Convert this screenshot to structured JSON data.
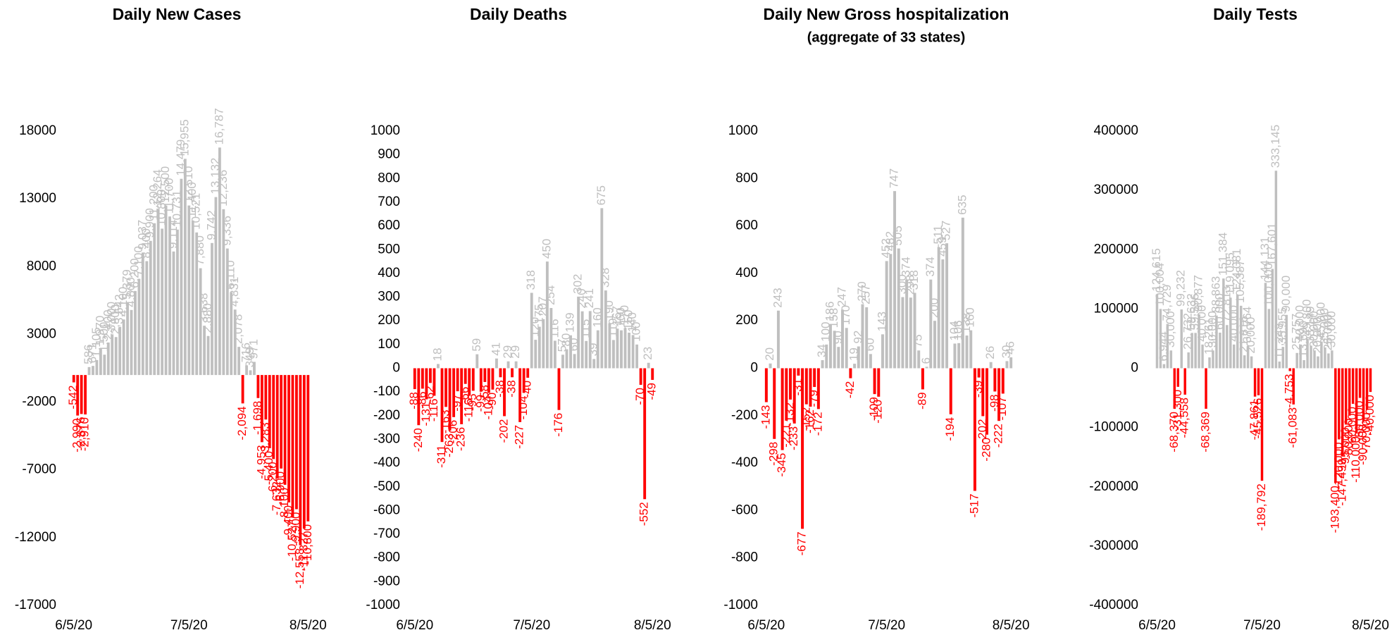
{
  "chart_data": [
    {
      "type": "bar",
      "title": "Daily New Cases",
      "color": "#bfbfbf",
      "negative_color": "#ff0000",
      "categories": [
        "6/5/20",
        null,
        null,
        null,
        null,
        null,
        null,
        null,
        null,
        null,
        null,
        null,
        null,
        null,
        null,
        null,
        null,
        null,
        null,
        null,
        null,
        null,
        null,
        null,
        null,
        null,
        null,
        null,
        null,
        null,
        "7/5/20",
        null,
        null,
        null,
        null,
        null,
        null,
        null,
        null,
        null,
        null,
        null,
        null,
        null,
        null,
        null,
        null,
        null,
        null,
        null,
        null,
        null,
        null,
        null,
        null,
        null,
        null,
        null,
        null,
        null,
        null,
        "8/5/20"
      ],
      "values": [
        -542,
        -2990,
        -2876,
        -2910,
        586,
        671,
        1105,
        1970,
        1500,
        2400,
        3000,
        2800,
        3542,
        4100,
        5379,
        4800,
        6200,
        7100,
        9037,
        8400,
        9900,
        11200,
        12264,
        10800,
        12500,
        11700,
        9114,
        10731,
        14479,
        15955,
        12510,
        11400,
        10521,
        7880,
        3638,
        2880,
        9742,
        13132,
        16787,
        12236,
        9336,
        6110,
        4831,
        2078,
        -2094,
        716,
        349,
        971,
        -1698,
        -4953,
        -3283,
        -5400,
        -6200,
        -7632,
        -6900,
        -8100,
        -9400,
        -10527,
        -9900,
        -12558,
        -11327,
        -10800
      ],
      "value_labels": [
        "-542",
        "-2,990",
        "-2,876",
        "-2,910",
        "586",
        "671",
        "1,105",
        "1,970",
        "1,500",
        "2,400",
        "3,000",
        "2,800",
        "3,542",
        "4,100",
        "5,379",
        "4,800",
        "6,200",
        "7,100",
        "9,037",
        "8,400",
        "9,900",
        "11,200",
        "12,264",
        "10,800",
        "12,500",
        "11,700",
        "9,114",
        "10,731",
        "14,479",
        "15,955",
        "12,510",
        "11,400",
        "10,521",
        "7,880",
        "3,638",
        "2,880",
        "9,742",
        "13,132",
        "16,787",
        "12,236",
        "9,336",
        "6,110",
        "4,831",
        "2,078",
        "-2,094",
        "716",
        "349",
        "971",
        "-1,698",
        "-4,953",
        "-3,283",
        "-5,400",
        "-6,200",
        "-7,632",
        "-6,900",
        "-8,100",
        "-9,400",
        "-10,527",
        "-9,900",
        "-12,558",
        "-11,327",
        "-10,800"
      ],
      "ylim": [
        -17000,
        18000
      ],
      "yticks": [
        -17000,
        -12000,
        -7000,
        -2000,
        3000,
        8000,
        13000,
        18000
      ]
    },
    {
      "type": "bar",
      "title": "Daily Deaths",
      "color": "#bfbfbf",
      "negative_color": "#ff0000",
      "categories": [
        "6/5/20",
        null,
        null,
        null,
        null,
        null,
        null,
        null,
        null,
        null,
        null,
        null,
        null,
        null,
        null,
        null,
        null,
        null,
        null,
        null,
        null,
        null,
        null,
        null,
        null,
        null,
        null,
        null,
        null,
        null,
        "7/5/20",
        null,
        null,
        null,
        null,
        null,
        null,
        null,
        null,
        null,
        null,
        null,
        null,
        null,
        null,
        null,
        null,
        null,
        null,
        null,
        null,
        null,
        null,
        null,
        null,
        null,
        null,
        null,
        null,
        null,
        null,
        "8/5/20"
      ],
      "values": [
        -88,
        -240,
        -86,
        -131,
        -62,
        -116,
        18,
        -311,
        -163,
        -263,
        -206,
        -97,
        -236,
        -66,
        -116,
        -95,
        59,
        -99,
        -58,
        -104,
        -90,
        41,
        -38,
        -202,
        29,
        -38,
        29,
        -227,
        -104,
        -40,
        318,
        120,
        175,
        207,
        450,
        254,
        116,
        -176,
        57,
        80,
        139,
        60,
        302,
        240,
        115,
        241,
        39,
        160,
        675,
        328,
        190,
        119,
        167,
        160,
        170,
        150,
        140,
        100,
        -70,
        -552,
        23,
        -49
      ],
      "ylim": [
        -1000,
        1000
      ],
      "yticks": [
        -1000,
        -900,
        -800,
        -700,
        -600,
        -500,
        -400,
        -300,
        -200,
        -100,
        0,
        100,
        200,
        300,
        400,
        500,
        600,
        700,
        800,
        900,
        1000
      ]
    },
    {
      "type": "bar",
      "title": "Daily New Gross hospitalization",
      "subtitle": "(aggregate of 33 states)",
      "color": "#bfbfbf",
      "negative_color": "#ff0000",
      "categories": [
        "6/5/20",
        null,
        null,
        null,
        null,
        null,
        null,
        null,
        null,
        null,
        null,
        null,
        null,
        null,
        null,
        null,
        null,
        null,
        null,
        null,
        null,
        null,
        null,
        null,
        null,
        null,
        null,
        null,
        null,
        null,
        "7/5/20",
        null,
        null,
        null,
        null,
        null,
        null,
        null,
        null,
        null,
        null,
        null,
        null,
        null,
        null,
        null,
        null,
        null,
        null,
        null,
        null,
        null,
        null,
        null,
        null,
        null,
        null,
        null,
        null,
        null,
        null,
        "8/5/20"
      ],
      "values": [
        -143,
        20,
        -298,
        243,
        -345,
        -221,
        -132,
        -233,
        -31,
        -677,
        -152,
        -162,
        -79,
        -172,
        34,
        100,
        186,
        158,
        90,
        247,
        170,
        -42,
        19,
        92,
        270,
        257,
        60,
        -109,
        -120,
        143,
        452,
        482,
        747,
        505,
        300,
        374,
        298,
        318,
        75,
        -89,
        6,
        374,
        200,
        511,
        459,
        527,
        -194,
        104,
        106,
        635,
        138,
        160,
        -517,
        -39,
        -202,
        -280,
        26,
        -98,
        -222,
        -107,
        30,
        46
      ],
      "ylim": [
        -1000,
        1000
      ],
      "yticks": [
        -1000,
        -800,
        -600,
        -400,
        -200,
        0,
        200,
        400,
        600,
        800,
        1000
      ]
    },
    {
      "type": "bar",
      "title": "Daily Tests",
      "color": "#bfbfbf",
      "negative_color": "#ff0000",
      "categories": [
        "6/5/20",
        null,
        null,
        null,
        null,
        null,
        null,
        null,
        null,
        null,
        null,
        null,
        null,
        null,
        null,
        null,
        null,
        null,
        null,
        null,
        null,
        null,
        null,
        null,
        null,
        null,
        null,
        null,
        null,
        null,
        "7/5/20",
        null,
        null,
        null,
        null,
        null,
        null,
        null,
        null,
        null,
        null,
        null,
        null,
        null,
        null,
        null,
        null,
        null,
        null,
        null,
        null,
        null,
        null,
        null,
        null,
        null,
        null,
        null,
        null,
        null,
        null,
        "8/5/20"
      ],
      "values": [
        124615,
        100004,
        6944,
        74729,
        30000,
        -68370,
        -31300,
        99232,
        -44558,
        26732,
        59632,
        59596,
        90877,
        40000,
        -68369,
        18261,
        30000,
        88863,
        60000,
        151384,
        72813,
        119095,
        40000,
        124081,
        105387,
        21816,
        37764,
        20000,
        -47861,
        -45526,
        -189792,
        144131,
        100000,
        167601,
        333145,
        11248,
        35955,
        90000,
        -4753,
        -61083,
        25757,
        40000,
        13690,
        49800,
        38149,
        30000,
        20000,
        45000,
        35000,
        25000,
        30000,
        -193400,
        -120000,
        -147499,
        -95000,
        -80000,
        -60000,
        -110000,
        -50000,
        -90000,
        -70000,
        -40000
      ],
      "value_labels": [
        "124,615",
        "100,004",
        "6,944",
        "74,729",
        "30,000",
        "-68,370",
        "-31,300",
        "99,232",
        "-44,558",
        "26,732",
        "59,632",
        "59,596",
        "90,877",
        "40,000",
        "-68,369",
        "18,261",
        "30,000",
        "88,863",
        "60,000",
        "151,384",
        "72,813",
        "119,095",
        "40,000",
        "124,081",
        "105,387",
        "21,816",
        "37,764",
        "20,000",
        "-47,861",
        "-45,526",
        "-189,792",
        "144,131",
        "100,000",
        "167,601",
        "333,145",
        "11,248",
        "35,955",
        "90,000",
        "-4,753",
        "-61,083",
        "25,757",
        "40,000",
        "13,690",
        "49,800",
        "38,149",
        "30,000",
        "20,000",
        "45,000",
        "35,000",
        "25,000",
        "30,000",
        "-193,400",
        "-120,000",
        "-147,499",
        "-95,000",
        "-80,000",
        "-60,000",
        "-110,000",
        "-50,000",
        "-90,000",
        "-70,000",
        "-40,000"
      ],
      "ylim": [
        -400000,
        400000
      ],
      "yticks": [
        -400000,
        -300000,
        -200000,
        -100000,
        0,
        100000,
        200000,
        300000,
        400000
      ]
    }
  ]
}
